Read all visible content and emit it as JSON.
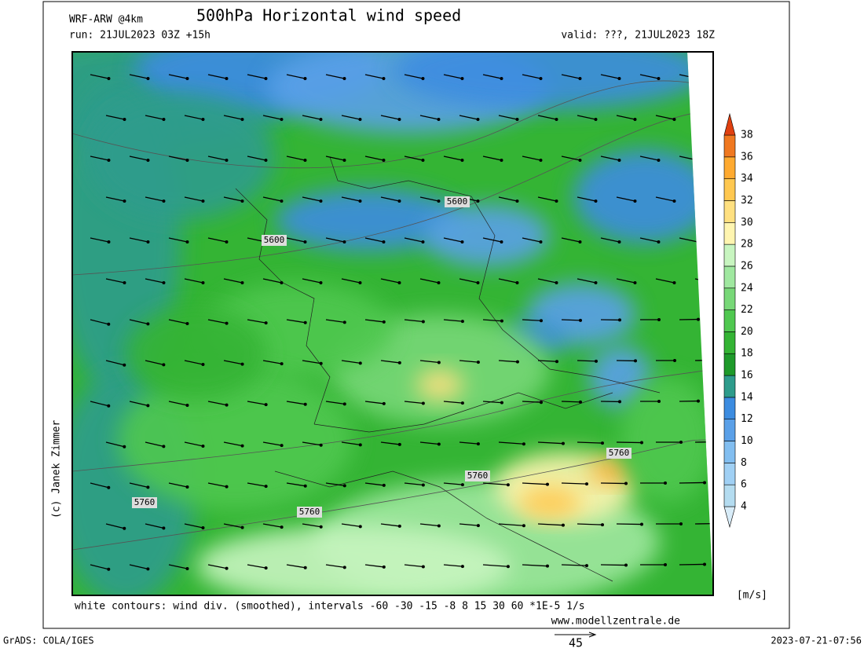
{
  "header": {
    "model": "WRF-ARW @4km",
    "title": "500hPa Horizontal wind speed",
    "run": "run: 21JUL2023 03Z +15h",
    "valid": "valid: ???, 21JUL2023 18Z"
  },
  "colorbar": {
    "levels": [
      4,
      6,
      8,
      10,
      12,
      14,
      16,
      18,
      20,
      22,
      24,
      26,
      28,
      30,
      32,
      34,
      36,
      38
    ],
    "colors": [
      "#d8ecf8",
      "#b4dcf0",
      "#a0d0f4",
      "#82bef0",
      "#5aa0e8",
      "#3c8ce0",
      "#2e9c8c",
      "#1e9a2a",
      "#34b434",
      "#50c850",
      "#78d878",
      "#a0e8a0",
      "#c8f5c0",
      "#fff5b0",
      "#ffe080",
      "#ffc850",
      "#ffaa30",
      "#f07820",
      "#e04010"
    ],
    "unit": "[m/s]"
  },
  "contour_labels": [
    "5600",
    "5600",
    "5760",
    "5760",
    "5760",
    "5760"
  ],
  "footer": {
    "note": "white contours: wind div. (smoothed), intervals -60 -30 -15 -8 8 15 30 60 *1E-5 1/s",
    "site": "www.modellzentrale.de",
    "copyright": "(c) Janek Zimmer",
    "software": "GrADS: COLA/IGES",
    "timestamp": "2023-07-21-07:56",
    "vector_scale": "45"
  }
}
